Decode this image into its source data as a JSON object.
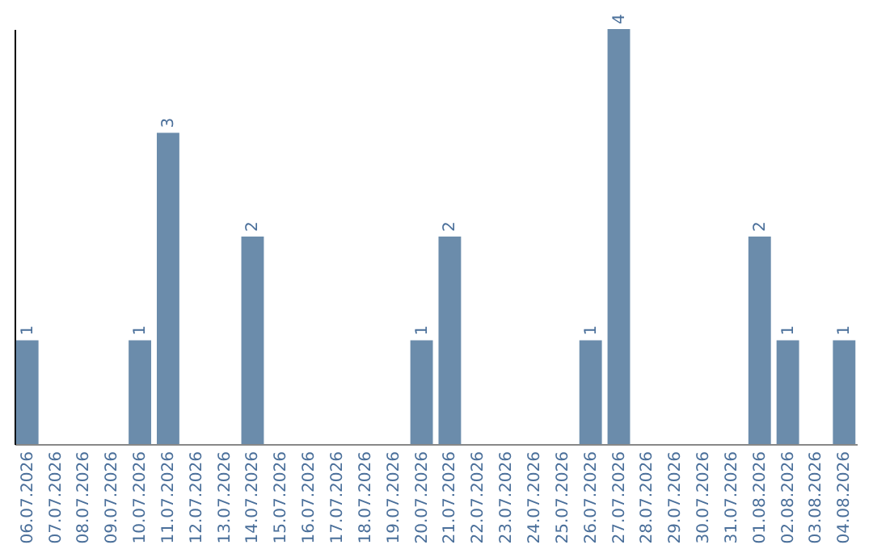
{
  "chart_data": {
    "type": "bar",
    "categories": [
      "06.07.2026",
      "07.07.2026",
      "08.07.2026",
      "09.07.2026",
      "10.07.2026",
      "11.07.2026",
      "12.07.2026",
      "13.07.2026",
      "14.07.2026",
      "15.07.2026",
      "16.07.2026",
      "17.07.2026",
      "18.07.2026",
      "19.07.2026",
      "20.07.2026",
      "21.07.2026",
      "22.07.2026",
      "23.07.2026",
      "24.07.2026",
      "25.07.2026",
      "26.07.2026",
      "27.07.2026",
      "28.07.2026",
      "29.07.2026",
      "30.07.2026",
      "31.07.2026",
      "01.08.2026",
      "02.08.2026",
      "03.08.2026",
      "04.08.2026"
    ],
    "values": [
      1,
      0,
      0,
      0,
      1,
      3,
      0,
      0,
      2,
      0,
      0,
      0,
      0,
      0,
      1,
      2,
      0,
      0,
      0,
      0,
      1,
      4,
      0,
      0,
      0,
      0,
      2,
      1,
      0,
      1
    ],
    "value_labels": [
      "1",
      null,
      null,
      null,
      "1",
      "3",
      null,
      null,
      "2",
      null,
      null,
      null,
      null,
      null,
      "1",
      "2",
      null,
      null,
      null,
      null,
      "1",
      "4",
      null,
      null,
      null,
      null,
      "2",
      "1",
      null,
      "1"
    ],
    "color": "#6b8cab",
    "tick_labels": "x",
    "grid": false
  }
}
